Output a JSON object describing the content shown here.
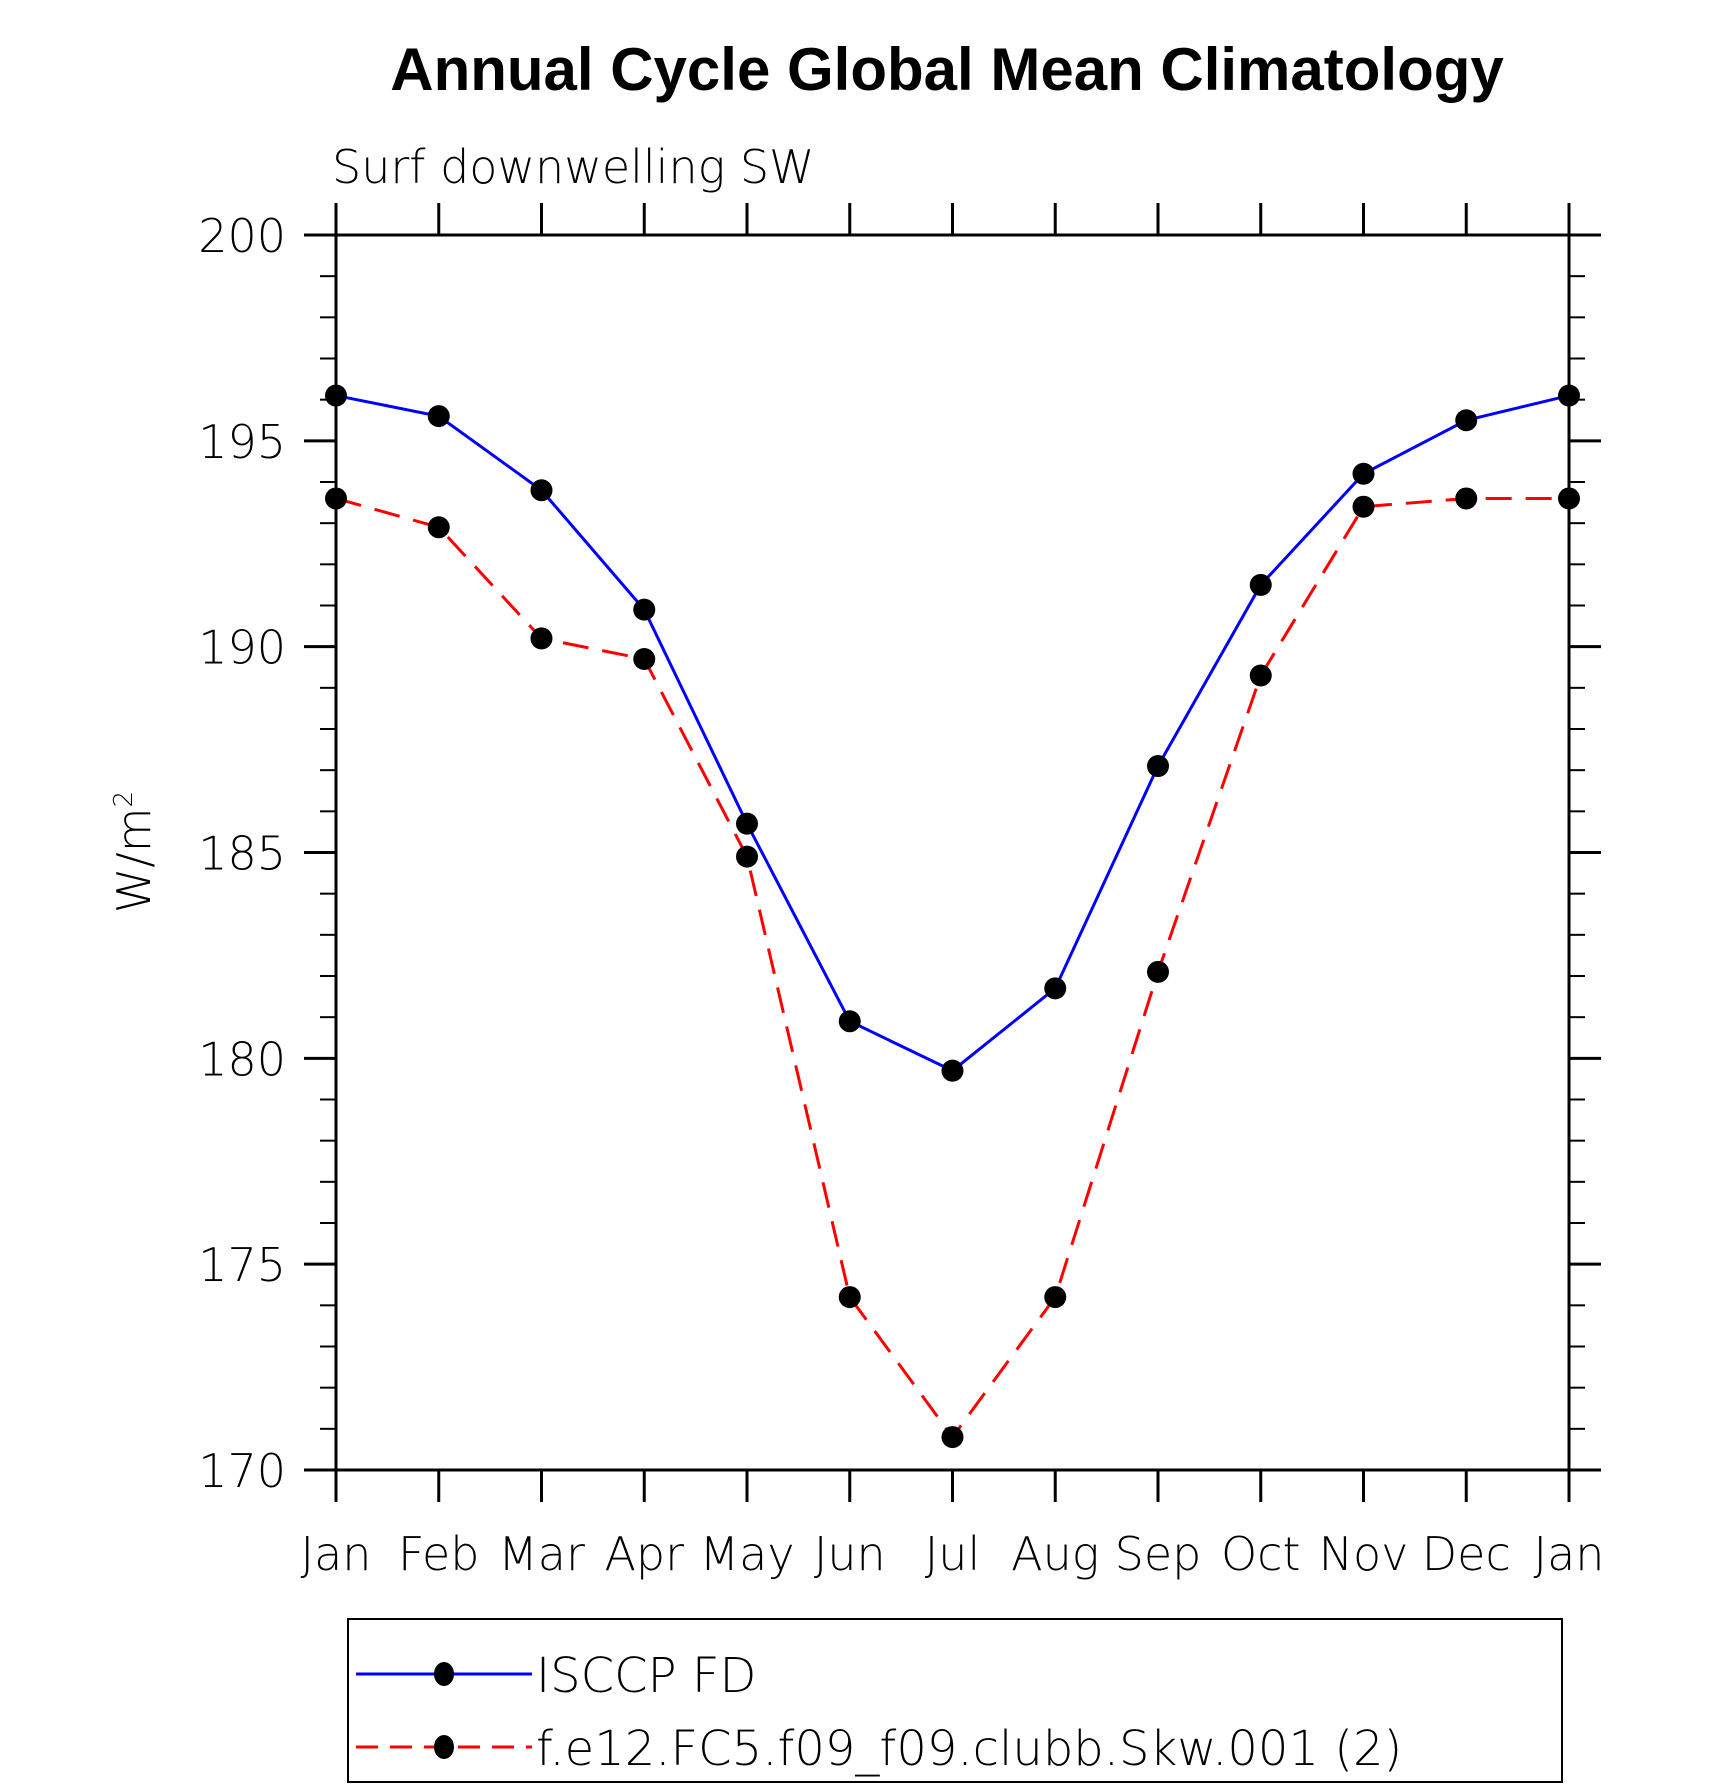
{
  "chart_data": {
    "type": "line",
    "title": "Annual Cycle Global Mean Climatology",
    "subtitle": "Surf downwelling SW",
    "xlabel": "",
    "ylabel": "W/m",
    "ylabel_superscript": "2",
    "ylim": [
      170,
      200
    ],
    "yticks": [
      170,
      175,
      180,
      185,
      190,
      195,
      200
    ],
    "ytick_labels": [
      "170",
      "175",
      "180",
      "185",
      "190",
      "195",
      "200"
    ],
    "y_minor_step": 1,
    "categories": [
      "Jan",
      "Feb",
      "Mar",
      "Apr",
      "May",
      "Jun",
      "Jul",
      "Aug",
      "Sep",
      "Oct",
      "Nov",
      "Dec",
      "Jan"
    ],
    "grid": false,
    "legend_position": "bottom",
    "series": [
      {
        "name": "ISCCP FD",
        "color": "#0000ff",
        "dash": "solid",
        "marker": "filled-circle",
        "values": [
          196.1,
          195.6,
          193.8,
          190.9,
          185.7,
          180.9,
          179.7,
          181.7,
          187.1,
          191.5,
          194.2,
          195.5,
          196.1
        ]
      },
      {
        "name": "f.e12.FC5.f09_f09.clubb.Skw.001 (2)",
        "color": "#ff0000",
        "dash": "dashed",
        "marker": "filled-circle",
        "values": [
          193.6,
          192.9,
          190.2,
          189.7,
          184.9,
          174.2,
          170.8,
          174.2,
          182.1,
          189.3,
          193.4,
          193.6,
          193.6
        ]
      }
    ]
  }
}
